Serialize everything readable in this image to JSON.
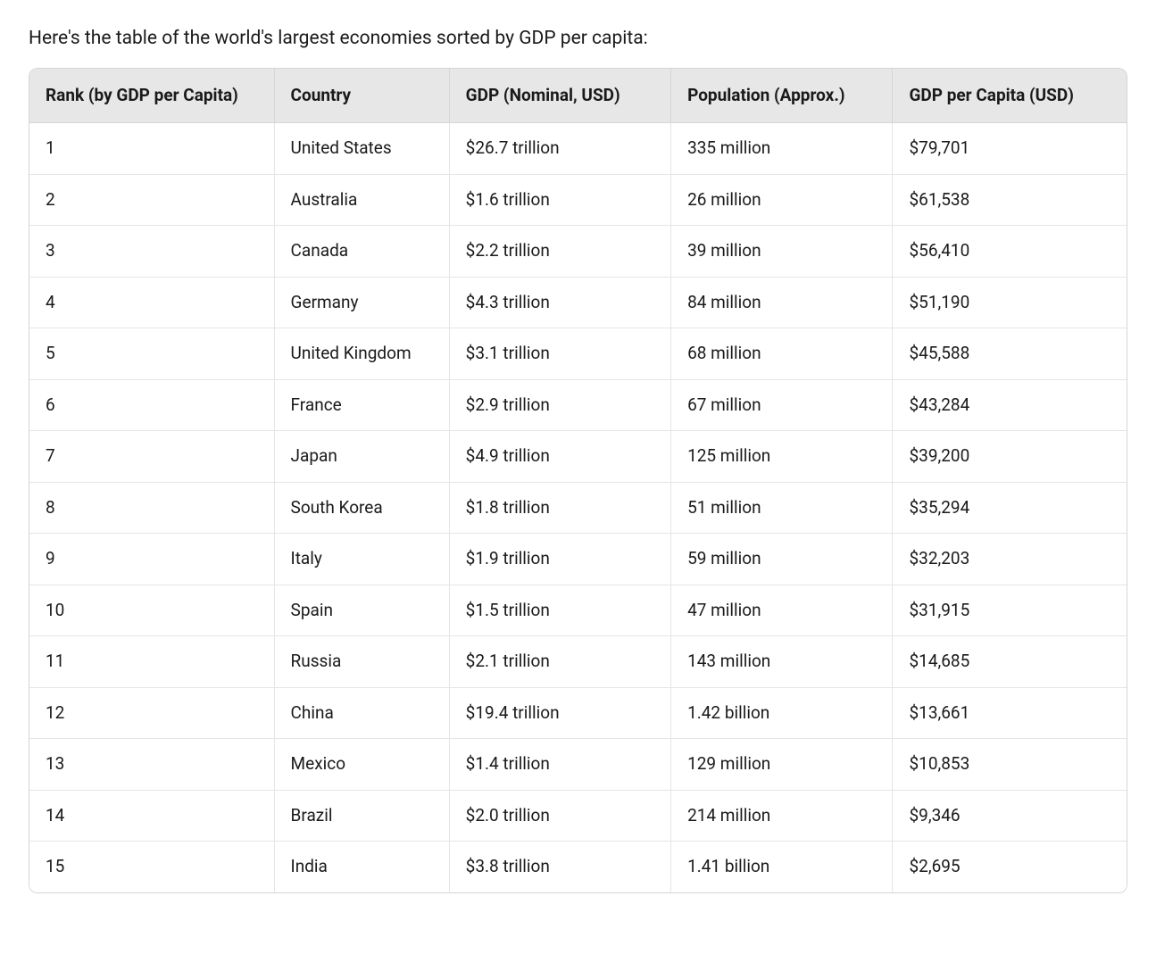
{
  "intro_text": "Here's the table of the world's largest economies sorted by GDP per capita:",
  "table": {
    "type": "table",
    "header_bg": "#e7e7e7",
    "border_color": "#d6d6d6",
    "row_border_color": "#e5e5e5",
    "text_color": "#1a1a1a",
    "font_size_pt": 14,
    "header_font_weight": 700,
    "columns": [
      "Rank (by GDP per Capita)",
      "Country",
      "GDP (Nominal, USD)",
      "Population (Approx.)",
      "GDP per Capita (USD)"
    ],
    "rows": [
      [
        "1",
        "United States",
        "$26.7 trillion",
        "335 million",
        "$79,701"
      ],
      [
        "2",
        "Australia",
        "$1.6 trillion",
        "26 million",
        "$61,538"
      ],
      [
        "3",
        "Canada",
        "$2.2 trillion",
        "39 million",
        "$56,410"
      ],
      [
        "4",
        "Germany",
        "$4.3 trillion",
        "84 million",
        "$51,190"
      ],
      [
        "5",
        "United Kingdom",
        "$3.1 trillion",
        "68 million",
        "$45,588"
      ],
      [
        "6",
        "France",
        "$2.9 trillion",
        "67 million",
        "$43,284"
      ],
      [
        "7",
        "Japan",
        "$4.9 trillion",
        "125 million",
        "$39,200"
      ],
      [
        "8",
        "South Korea",
        "$1.8 trillion",
        "51 million",
        "$35,294"
      ],
      [
        "9",
        "Italy",
        "$1.9 trillion",
        "59 million",
        "$32,203"
      ],
      [
        "10",
        "Spain",
        "$1.5 trillion",
        "47 million",
        "$31,915"
      ],
      [
        "11",
        "Russia",
        "$2.1 trillion",
        "143 million",
        "$14,685"
      ],
      [
        "12",
        "China",
        "$19.4 trillion",
        "1.42 billion",
        "$13,661"
      ],
      [
        "13",
        "Mexico",
        "$1.4 trillion",
        "129 million",
        "$10,853"
      ],
      [
        "14",
        "Brazil",
        "$2.0 trillion",
        "214 million",
        "$9,346"
      ],
      [
        "15",
        "India",
        "$3.8 trillion",
        "1.41 billion",
        "$2,695"
      ]
    ]
  }
}
